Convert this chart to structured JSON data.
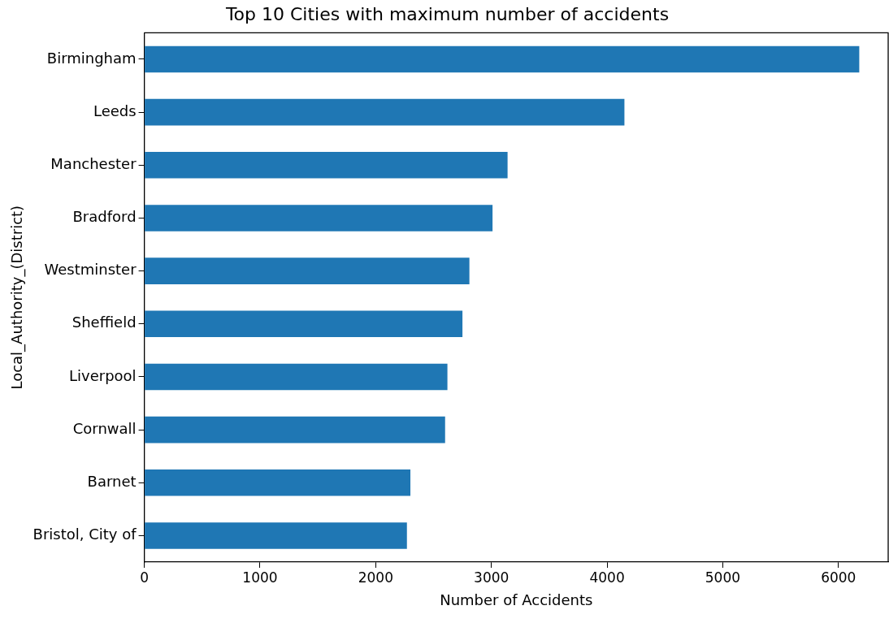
{
  "chart_data": {
    "type": "bar",
    "orientation": "horizontal",
    "title": "Top 10 Cities with maximum number of accidents",
    "xlabel": "Number of Accidents",
    "ylabel": "Local_Authority_(District)",
    "categories": [
      "Birmingham",
      "Leeds",
      "Manchester",
      "Bradford",
      "Westminster",
      "Sheffield",
      "Liverpool",
      "Cornwall",
      "Barnet",
      "Bristol, City of"
    ],
    "values": [
      6180,
      4150,
      3140,
      3010,
      2810,
      2750,
      2620,
      2600,
      2300,
      2270
    ],
    "color": "#1f77b4",
    "xlim": [
      0,
      6430
    ],
    "xticks": [
      0,
      1000,
      2000,
      3000,
      4000,
      5000,
      6000
    ],
    "grid": false,
    "legend": false
  }
}
